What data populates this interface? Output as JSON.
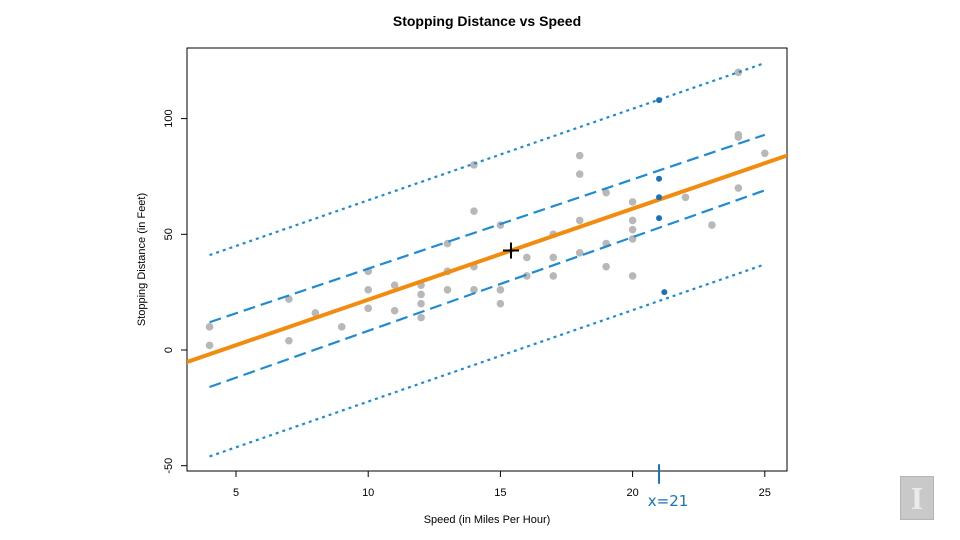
{
  "chart_data": {
    "type": "scatter",
    "title": "Stopping Distance vs Speed",
    "xlabel": "Speed (in Miles Per Hour)",
    "ylabel": "Stopping Distance (in Feet)",
    "xlim": [
      3,
      26
    ],
    "ylim": [
      -50,
      130
    ],
    "xticks": [
      5,
      10,
      15,
      20,
      25
    ],
    "yticks": [
      -50,
      0,
      50,
      100
    ],
    "grid": false,
    "points": [
      [
        4,
        2
      ],
      [
        4,
        10
      ],
      [
        7,
        4
      ],
      [
        7,
        22
      ],
      [
        8,
        16
      ],
      [
        9,
        10
      ],
      [
        10,
        18
      ],
      [
        10,
        26
      ],
      [
        10,
        34
      ],
      [
        11,
        17
      ],
      [
        11,
        28
      ],
      [
        12,
        14
      ],
      [
        12,
        20
      ],
      [
        12,
        24
      ],
      [
        12,
        28
      ],
      [
        13,
        26
      ],
      [
        13,
        34
      ],
      [
        13,
        34
      ],
      [
        13,
        46
      ],
      [
        14,
        26
      ],
      [
        14,
        36
      ],
      [
        14,
        60
      ],
      [
        14,
        80
      ],
      [
        15,
        20
      ],
      [
        15,
        26
      ],
      [
        15,
        54
      ],
      [
        16,
        32
      ],
      [
        16,
        40
      ],
      [
        17,
        32
      ],
      [
        17,
        40
      ],
      [
        17,
        50
      ],
      [
        18,
        42
      ],
      [
        18,
        56
      ],
      [
        18,
        76
      ],
      [
        18,
        84
      ],
      [
        19,
        36
      ],
      [
        19,
        46
      ],
      [
        19,
        68
      ],
      [
        20,
        32
      ],
      [
        20,
        48
      ],
      [
        20,
        52
      ],
      [
        20,
        56
      ],
      [
        20,
        64
      ],
      [
        22,
        66
      ],
      [
        23,
        54
      ],
      [
        24,
        70
      ],
      [
        24,
        92
      ],
      [
        24,
        93
      ],
      [
        24,
        120
      ],
      [
        25,
        85
      ]
    ],
    "regression_line": {
      "intercept": -17.579,
      "slope": 3.932,
      "color": "#f28c0f"
    },
    "confidence_band": {
      "style": "dashed",
      "color": "#1f8bd1",
      "lower": [
        [
          4,
          -16
        ],
        [
          25,
          69
        ]
      ],
      "upper": [
        [
          4,
          12
        ],
        [
          25,
          93
        ]
      ]
    },
    "prediction_band": {
      "style": "dotted",
      "color": "#1f8bd1",
      "lower": [
        [
          4,
          -46
        ],
        [
          25,
          37
        ]
      ],
      "upper": [
        [
          4,
          41
        ],
        [
          25,
          124
        ]
      ]
    },
    "mean_point": {
      "x": 15.4,
      "y": 42.98,
      "marker": "+"
    },
    "highlight_x": 21,
    "highlight_points": [
      [
        21,
        108
      ],
      [
        21,
        74
      ],
      [
        21,
        66
      ],
      [
        21,
        57
      ],
      [
        21.2,
        25
      ]
    ],
    "highlight_color": "#1a72b8",
    "point_color": "#b8b8b8"
  },
  "annotation": {
    "text": "x=21"
  }
}
